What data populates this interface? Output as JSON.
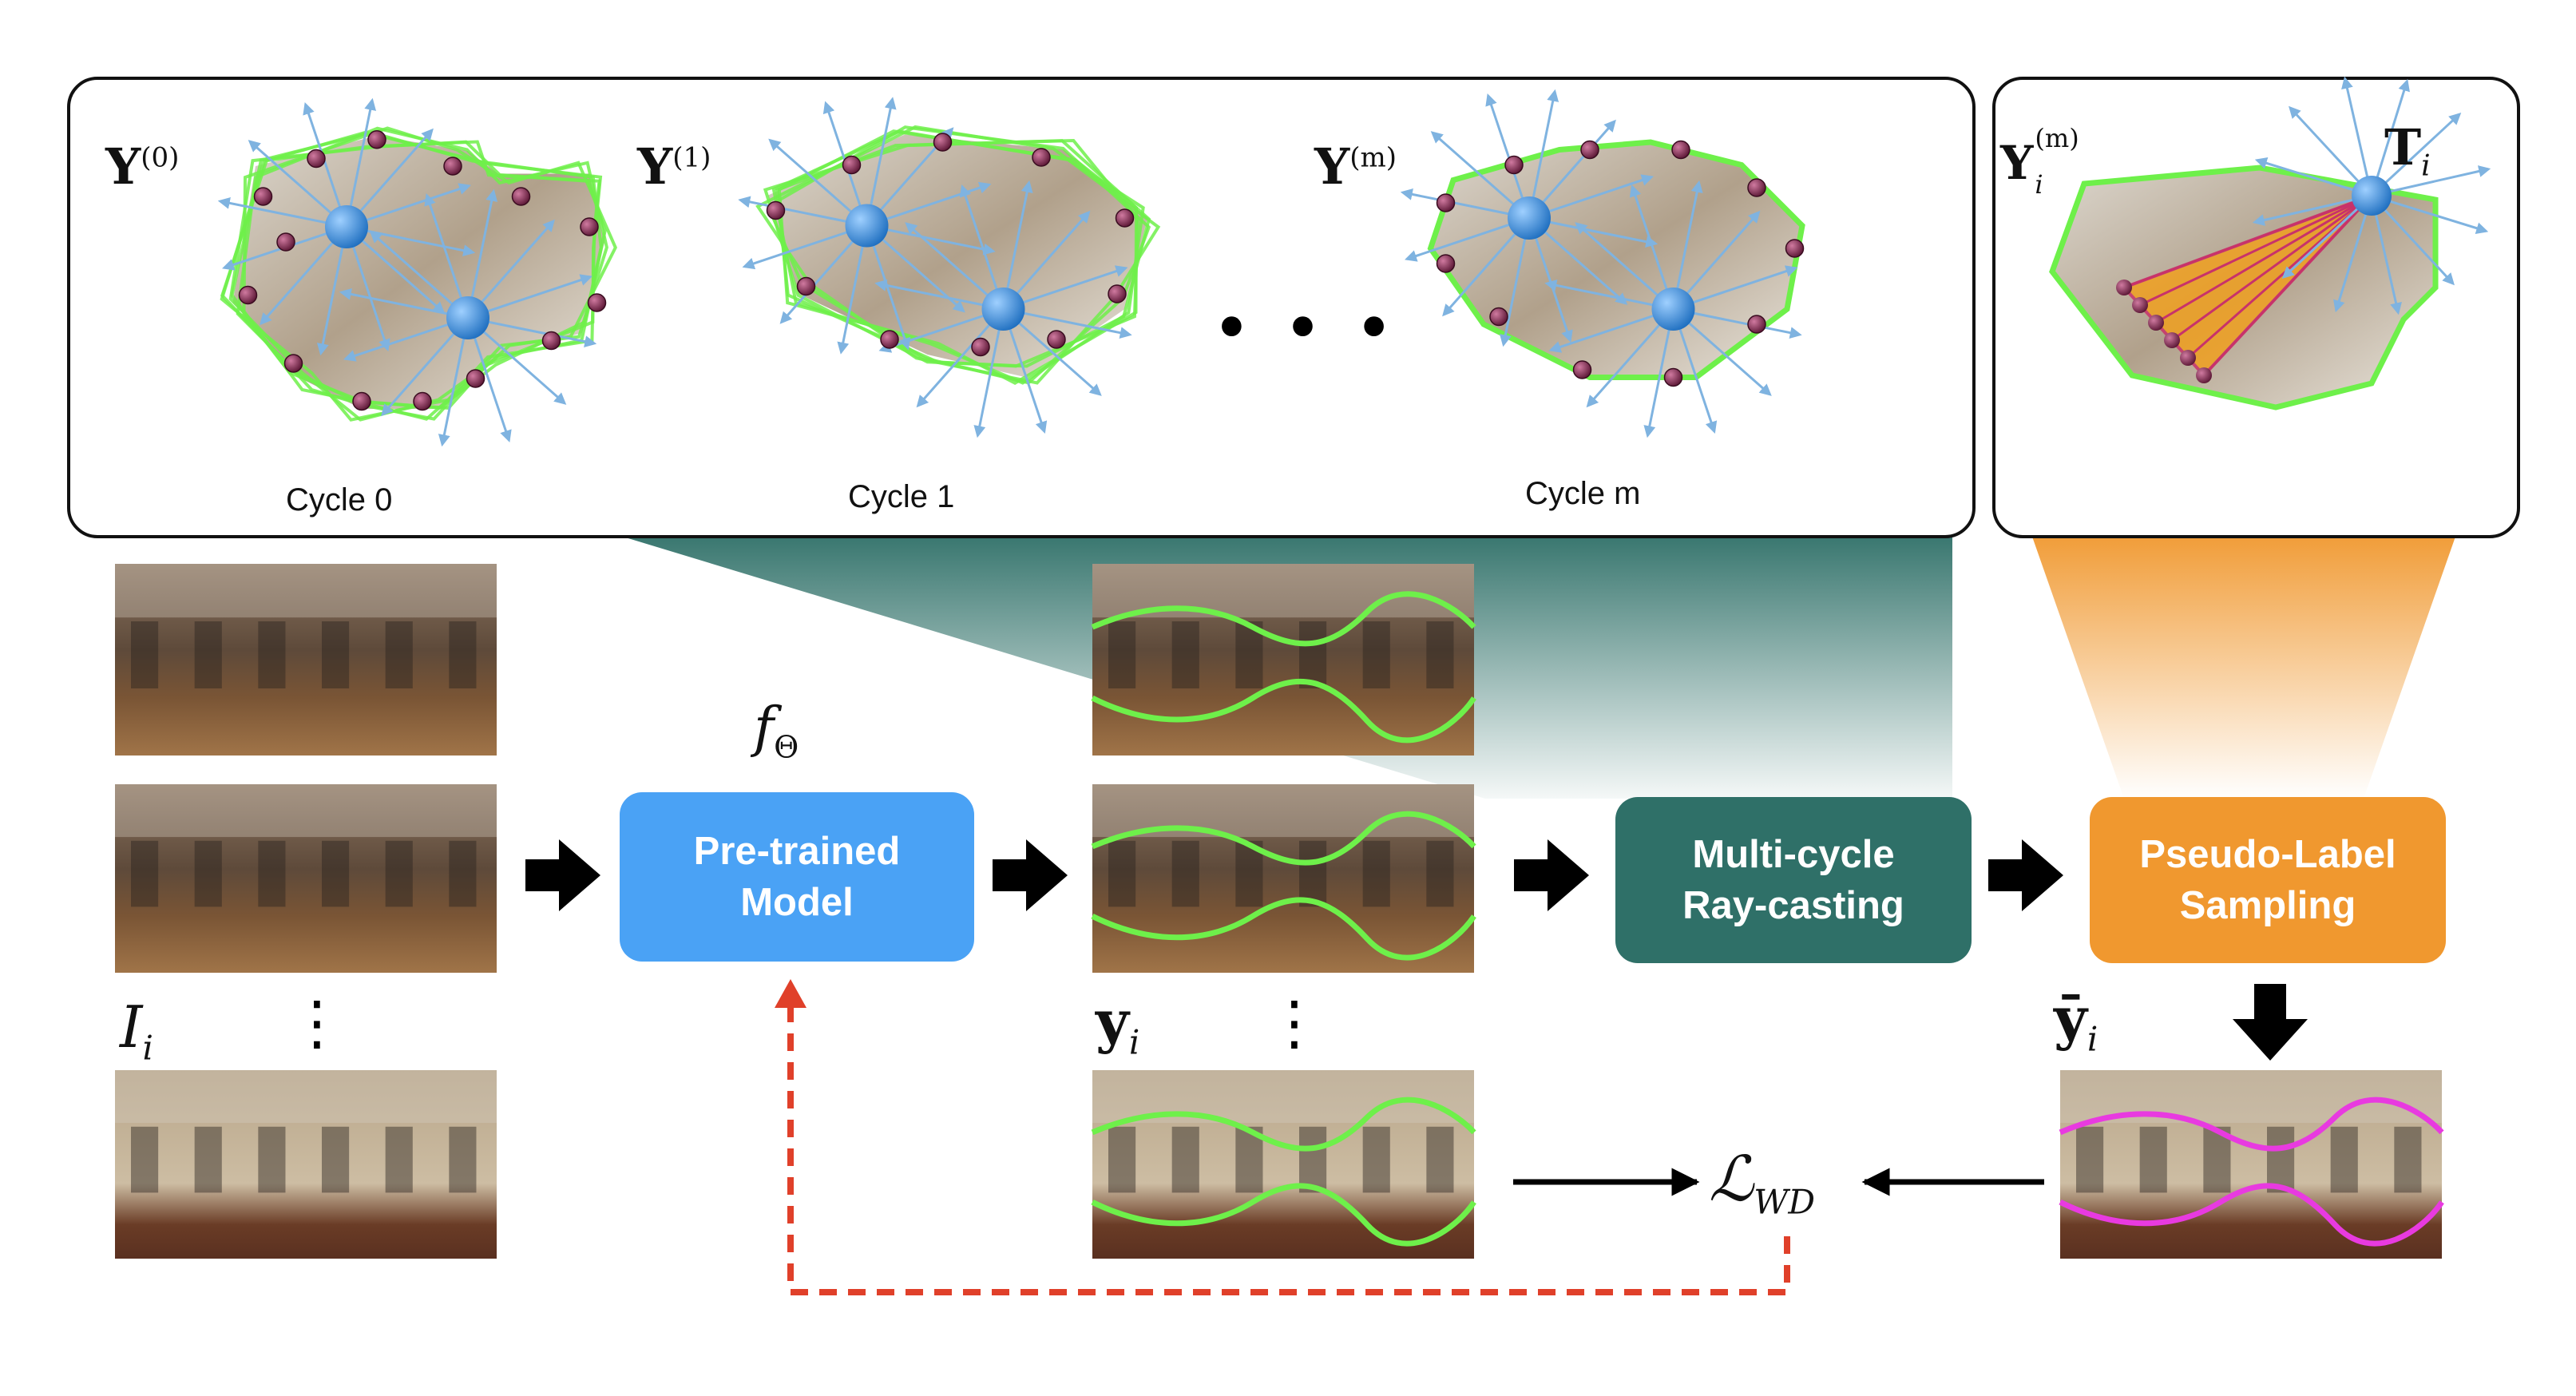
{
  "top_panel": {
    "set_labels": [
      {
        "base": "Y",
        "sup": "(0)"
      },
      {
        "base": "Y",
        "sup": "(1)"
      },
      {
        "base": "Y",
        "sup": "(m)"
      }
    ],
    "cycle_labels": [
      "Cycle 0",
      "Cycle 1",
      "Cycle m"
    ],
    "ellipsis": "• • •"
  },
  "right_panel": {
    "set_label": {
      "base": "Y",
      "sub": "i",
      "sup": "(m)"
    },
    "transform_label": {
      "base": "T",
      "sub": "i"
    }
  },
  "pipeline": {
    "input_label": {
      "base": "I",
      "sub": "i"
    },
    "model_symbol": {
      "base": "f",
      "sub": "Θ"
    },
    "boxes": [
      {
        "label": "Pre-trained\nModel",
        "color": "#4aa2f5"
      },
      {
        "label": "Multi-cycle\nRay-casting",
        "color": "#2f7068"
      },
      {
        "label": "Pseudo-Label\nSampling",
        "color": "#f0982f"
      }
    ],
    "prediction_label": {
      "base": "y",
      "sub": "i"
    },
    "pseudo_label": {
      "base": "ȳ",
      "sub": "i"
    },
    "loss_label": {
      "base": "ℒ",
      "sub": "WD"
    },
    "vertical_dots": "⋮"
  },
  "colors": {
    "layout_line": "#6ef04a",
    "pseudo_line": "#e83ae0",
    "camera": "#3a86d4",
    "point": "#8a2a55",
    "ray": "#7fb3e0",
    "dashed_feedback": "#e0402a",
    "teal_gradient": "#2f7068",
    "orange_gradient": "#f0982f"
  }
}
